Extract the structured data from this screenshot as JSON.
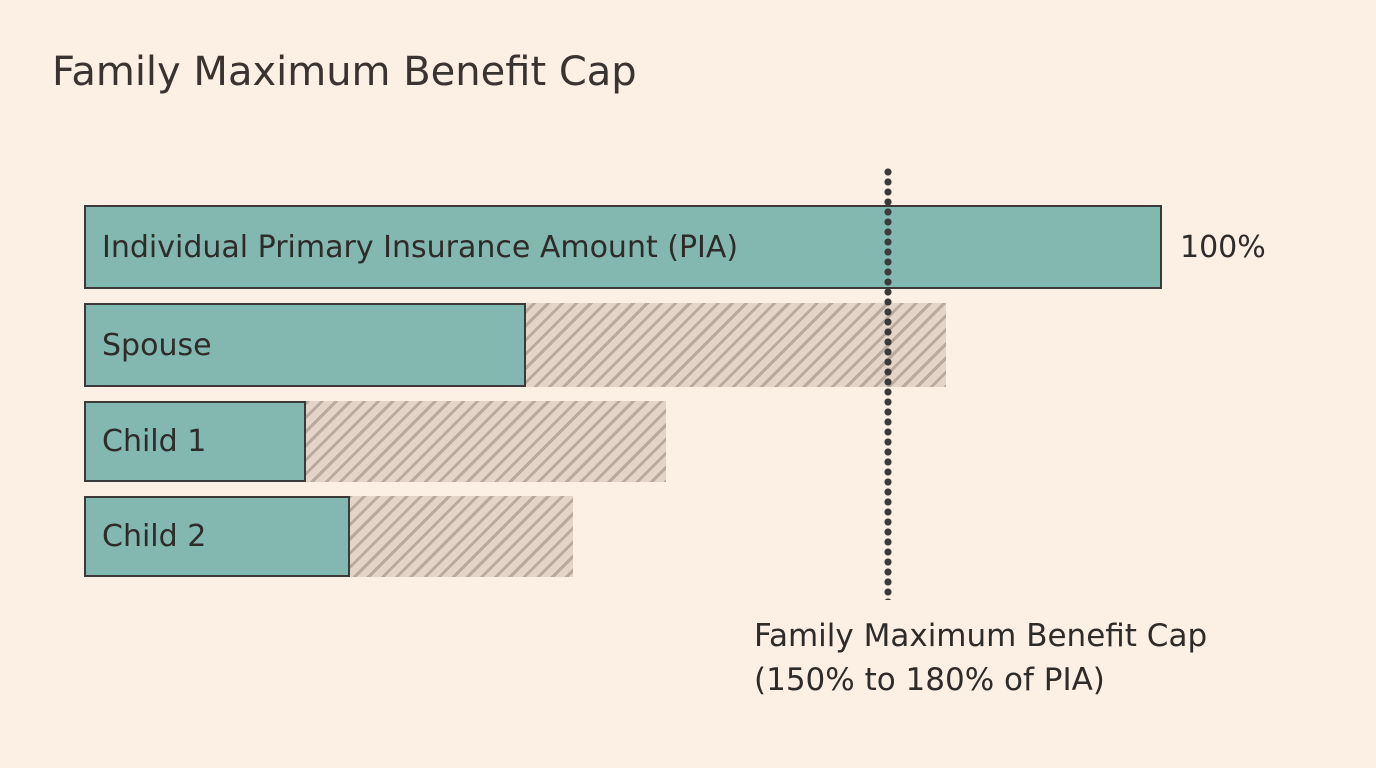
{
  "title": "Family Maximum Benefit Cap",
  "bars": [
    {
      "label": "Individual Primary Insurance Amount (PIA)",
      "value_pct_of_pia": 100,
      "value_label": "100%"
    },
    {
      "label": "Spouse"
    },
    {
      "label": "Child 1"
    },
    {
      "label": "Child 2"
    }
  ],
  "cap": {
    "line1": "Family Maximum Benefit Cap",
    "line2": "(150% to 180% of PIA)"
  },
  "colors": {
    "background": "#fcefe4",
    "bar_fill": "#82b8b0",
    "bar_border": "#3c3a38",
    "reduced_hatch": "#e3d4c7",
    "text": "#2f2b28"
  }
}
